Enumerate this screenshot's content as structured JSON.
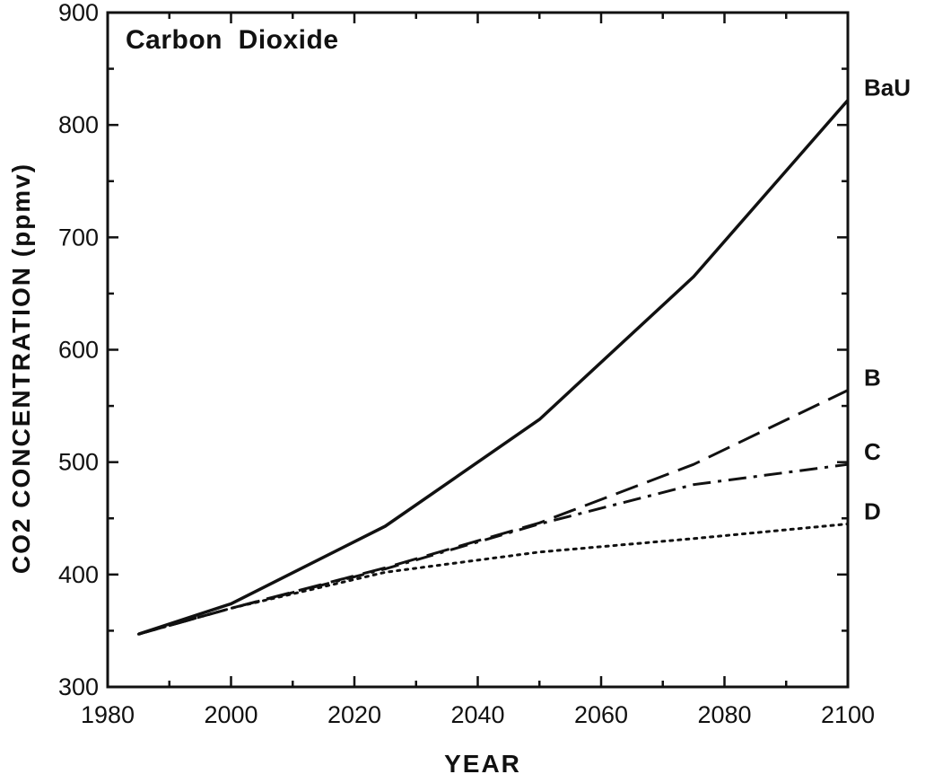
{
  "chart_data": {
    "type": "line",
    "title": "Carbon  Dioxide",
    "xlabel": "YEAR",
    "ylabel": "CO2 CONCENTRATION (ppmv)",
    "xlim": [
      1980,
      2100
    ],
    "ylim": [
      300,
      900
    ],
    "xticks": [
      1980,
      2000,
      2020,
      2040,
      2060,
      2080,
      2100
    ],
    "yticks": [
      300,
      400,
      500,
      600,
      700,
      800,
      900
    ],
    "grid": false,
    "legend": "right-end labels",
    "series": [
      {
        "name": "BaU",
        "style": "solid",
        "x": [
          1985,
          2000,
          2025,
          2050,
          2075,
          2100
        ],
        "y": [
          347,
          374,
          443,
          538,
          665,
          822
        ]
      },
      {
        "name": "B",
        "style": "dashed",
        "x": [
          1985,
          2000,
          2025,
          2050,
          2075,
          2100
        ],
        "y": [
          347,
          370,
          406,
          446,
          498,
          564
        ]
      },
      {
        "name": "C",
        "style": "dash-dot",
        "x": [
          1985,
          2000,
          2025,
          2050,
          2075,
          2100
        ],
        "y": [
          347,
          370,
          405,
          445,
          480,
          498
        ]
      },
      {
        "name": "D",
        "style": "dotted",
        "x": [
          1985,
          2000,
          2025,
          2050,
          2075,
          2100
        ],
        "y": [
          347,
          370,
          402,
          420,
          432,
          445
        ]
      }
    ]
  }
}
